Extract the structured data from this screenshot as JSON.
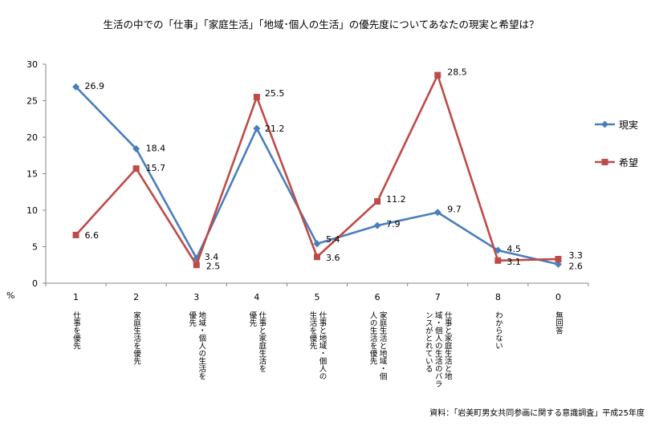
{
  "chart_data": {
    "type": "line",
    "title": "生活の中での「仕事」「家庭生活」「地域･個人の生活」の優先度についてあなたの現実と希望は？",
    "ylabel": "%",
    "ylim": [
      0,
      30
    ],
    "yticks": [
      0,
      5,
      10,
      15,
      20,
      25,
      30
    ],
    "grid": false,
    "legend_position": "right",
    "categories": [
      "1",
      "2",
      "3",
      "4",
      "5",
      "6",
      "7",
      "8",
      "0"
    ],
    "category_labels": [
      [
        "仕事を優先"
      ],
      [
        "家庭生活を優先"
      ],
      [
        "地域・個人の生活を",
        "優先"
      ],
      [
        "仕事と家庭生活を",
        "優先"
      ],
      [
        "仕事と地域・個人の",
        "生活を優先"
      ],
      [
        "家庭生活と地域・個",
        "人の生活を優先"
      ],
      [
        "仕事と家庭生活と地",
        "域・個人の生活のバラ",
        "ンスがとれている"
      ],
      [
        "わからない"
      ],
      [
        "無回答"
      ]
    ],
    "series": [
      {
        "name": "現実",
        "color": "#4a7ebb",
        "marker": "diamond",
        "values": [
          26.9,
          18.4,
          3.4,
          21.2,
          5.4,
          7.9,
          9.7,
          4.5,
          2.6
        ],
        "labels": [
          "26.9",
          "18.4",
          "3.4",
          "21.2",
          "5.4",
          "7.9",
          "9.7",
          "4.5",
          "2.6"
        ]
      },
      {
        "name": "希望",
        "color": "#be4b48",
        "marker": "square",
        "values": [
          6.6,
          15.7,
          2.5,
          25.5,
          3.6,
          11.2,
          28.5,
          3.1,
          3.3
        ],
        "labels": [
          "6.6",
          "15.7",
          "2.5",
          "25.5",
          "3.6",
          "11.2",
          "28.5",
          "3.1",
          "3.3"
        ]
      }
    ],
    "source": "資料：「岩美町男女共同参画に関する意識調査」平成25年度"
  }
}
